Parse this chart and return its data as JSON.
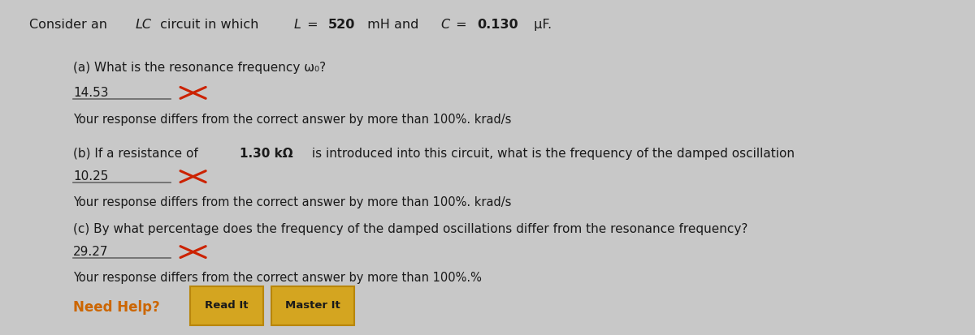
{
  "bg_color": "#c8c8c8",
  "panel_color": "#e8e8e6",
  "text_color": "#1a1a1a",
  "red_color": "#cc2200",
  "orange_color": "#cc6600",
  "title_parts": [
    {
      "text": "Consider an ",
      "bold": false,
      "italic": false
    },
    {
      "text": "LC",
      "bold": false,
      "italic": true
    },
    {
      "text": " circuit in which ",
      "bold": false,
      "italic": false
    },
    {
      "text": "L",
      "bold": false,
      "italic": true
    },
    {
      "text": " = ",
      "bold": false,
      "italic": false
    },
    {
      "text": "520",
      "bold": true,
      "italic": false
    },
    {
      "text": " mH and ",
      "bold": false,
      "italic": false
    },
    {
      "text": "C",
      "bold": false,
      "italic": true
    },
    {
      "text": " = ",
      "bold": false,
      "italic": false
    },
    {
      "text": "0.130",
      "bold": true,
      "italic": false
    },
    {
      "text": " μF.",
      "bold": false,
      "italic": false
    }
  ],
  "part_b_intro": "(b) If a resistance of ",
  "part_b_bold": "1.30 kΩ",
  "part_b_rest": " is introduced into this circuit, what is the frequency of the damped oscillation",
  "part_a_question": "(a) What is the resonance frequency ω₀?",
  "part_a_answer": "14.53",
  "part_a_feedback": "Your response differs from the correct answer by more than 100%. krad/s",
  "part_b_answer": "10.25",
  "part_b_feedback": "Your response differs from the correct answer by more than 100%. krad/s",
  "part_c_question": "(c) By what percentage does the frequency of the damped oscillations differ from the resonance frequency?",
  "part_c_answer": "29.27",
  "part_c_feedback": "Your response differs from the correct answer by more than 100%.%",
  "need_help_label": "Need Help?",
  "btn1": "Read It",
  "btn2": "Master It",
  "btn_facecolor": "#d4a520",
  "btn_edgecolor": "#b8860b"
}
